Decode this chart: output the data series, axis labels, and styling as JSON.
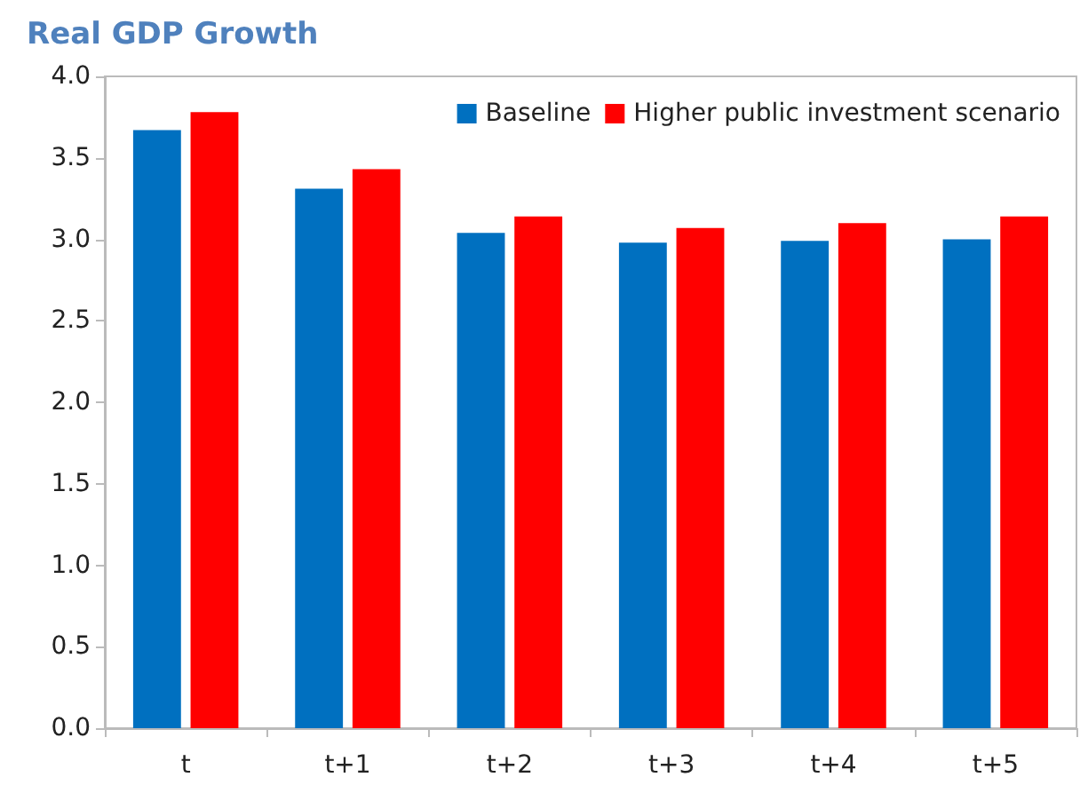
{
  "chart_data": {
    "type": "bar",
    "title": "Real GDP Growth",
    "categories": [
      "t",
      "t+1",
      "t+2",
      "t+3",
      "t+4",
      "t+5"
    ],
    "series": [
      {
        "name": "Baseline",
        "color": "#0070c0",
        "values": [
          3.67,
          3.31,
          3.04,
          2.98,
          2.99,
          3.0
        ]
      },
      {
        "name": "Higher public investment scenario",
        "color": "#ff0000",
        "values": [
          3.78,
          3.43,
          3.14,
          3.07,
          3.1,
          3.14
        ]
      }
    ],
    "ylim": [
      0,
      4
    ],
    "yticks": [
      {
        "value": 0,
        "label": "0.0"
      },
      0.5,
      {
        "value": 1,
        "label": "1.0"
      },
      1.5,
      {
        "value": 2,
        "label": "2.0"
      },
      2.5,
      {
        "value": 3,
        "label": "3.0"
      },
      3.5,
      {
        "value": 4,
        "label": "4.0"
      }
    ],
    "grid": false,
    "legend": "top right"
  }
}
